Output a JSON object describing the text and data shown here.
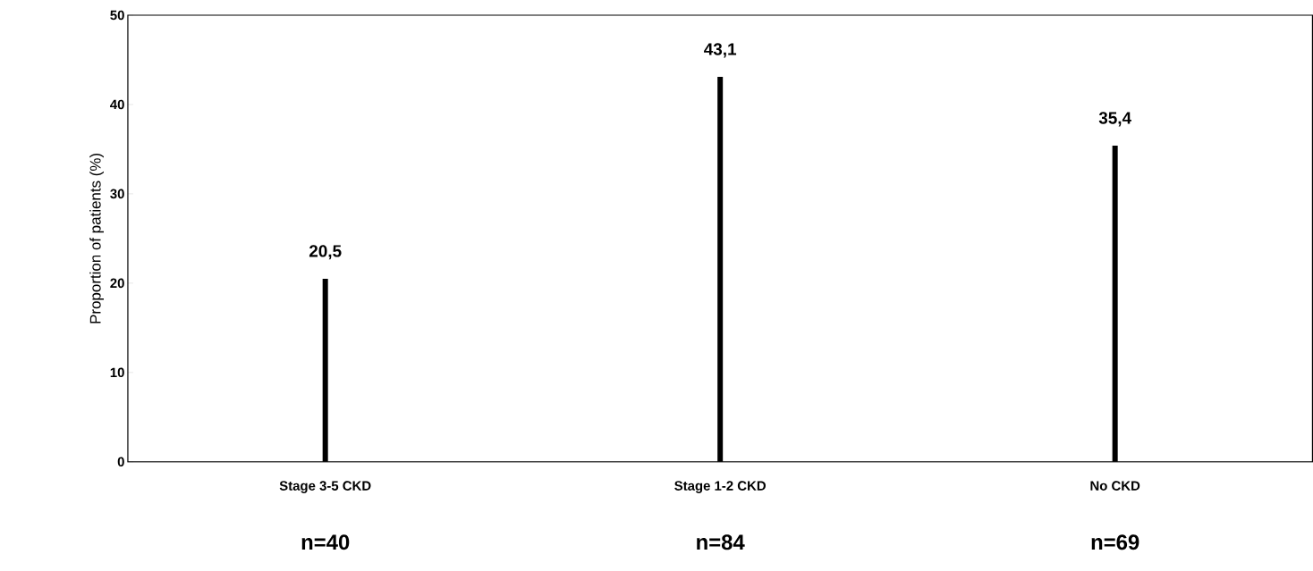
{
  "chart_data": {
    "type": "bar",
    "ylabel": "Proportion of patients (%)",
    "categories": [
      "Stage 3-5 CKD",
      "Stage 1-2 CKD",
      "No CKD"
    ],
    "values": [
      20.5,
      43.1,
      35.4
    ],
    "value_labels": [
      "20,5",
      "43,1",
      "35,4"
    ],
    "color": "#000000",
    "ylim": [
      0,
      50
    ],
    "yticks": [
      0,
      10,
      20,
      30,
      40,
      50
    ],
    "annotations": [
      "n=40",
      "n=84",
      "n=69"
    ]
  }
}
